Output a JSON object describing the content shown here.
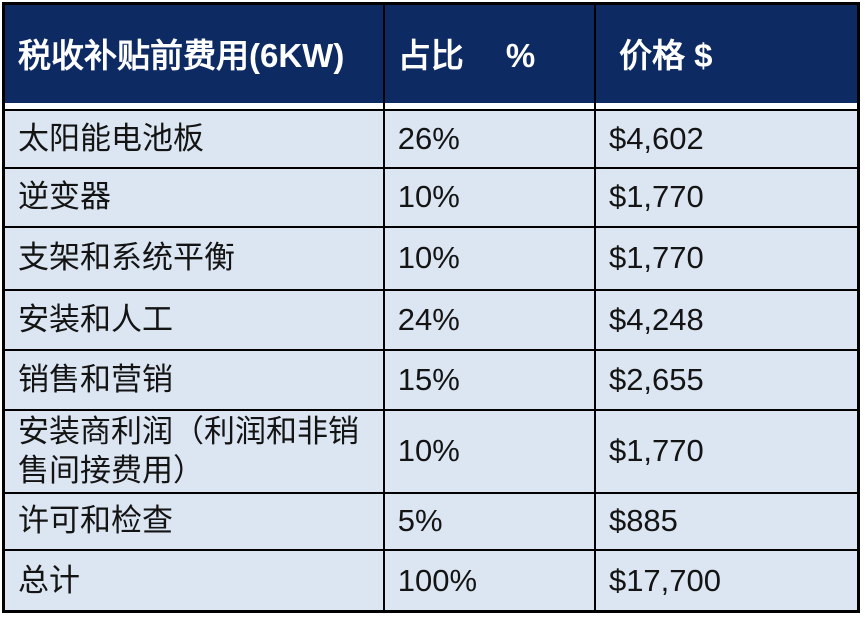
{
  "table": {
    "columns": [
      {
        "label": "税收补贴前费用(6KW)"
      },
      {
        "label": "占比　 %"
      },
      {
        "label": "价格 $"
      }
    ],
    "rows": [
      {
        "item": "太阳能电池板",
        "percent": "26%",
        "price": "$4,602"
      },
      {
        "item": "逆变器",
        "percent": "10%",
        "price": "$1,770"
      },
      {
        "item": "支架和系统平衡",
        "percent": "10%",
        "price": "$1,770"
      },
      {
        "item": "安装和人工",
        "percent": "24%",
        "price": "$4,248"
      },
      {
        "item": "销售和营销",
        "percent": "15%",
        "price": "$2,655"
      },
      {
        "item": "安装商利润（利润和非销售间接费用）",
        "percent": "10%",
        "price": "$1,770"
      },
      {
        "item": "许可和检查",
        "percent": "5%",
        "price": "$885"
      },
      {
        "item": "总计",
        "percent": "100%",
        "price": "$17,700"
      }
    ],
    "colors": {
      "header_bg": "#0D2A63",
      "header_text": "#FFFFFF",
      "row_bg": "#DCE6F2",
      "body_text": "#141414",
      "border": "#000000",
      "header_underline_gap": "#FFFFFF"
    }
  },
  "chart_data": {
    "type": "table",
    "title": "税收补贴前费用(6KW)",
    "columns": [
      "税收补贴前费用(6KW)",
      "占比 %",
      "价格 $"
    ],
    "categories": [
      "太阳能电池板",
      "逆变器",
      "支架和系统平衡",
      "安装和人工",
      "销售和营销",
      "安装商利润（利润和非销售间接费用）",
      "许可和检查",
      "总计"
    ],
    "series": [
      {
        "name": "占比 %",
        "values": [
          26,
          10,
          10,
          24,
          15,
          10,
          5,
          100
        ],
        "unit": "%"
      },
      {
        "name": "价格 $",
        "values": [
          4602,
          1770,
          1770,
          4248,
          2655,
          1770,
          885,
          17700
        ],
        "unit": "USD"
      }
    ],
    "rows": [
      [
        "太阳能电池板",
        "26%",
        "$4,602"
      ],
      [
        "逆变器",
        "10%",
        "$1,770"
      ],
      [
        "支架和系统平衡",
        "10%",
        "$1,770"
      ],
      [
        "安装和人工",
        "24%",
        "$4,248"
      ],
      [
        "销售和营销",
        "15%",
        "$2,655"
      ],
      [
        "安装商利润（利润和非销售间接费用）",
        "10%",
        "$1,770"
      ],
      [
        "许可和检查",
        "5%",
        "$885"
      ],
      [
        "总计",
        "100%",
        "$17,700"
      ]
    ]
  }
}
